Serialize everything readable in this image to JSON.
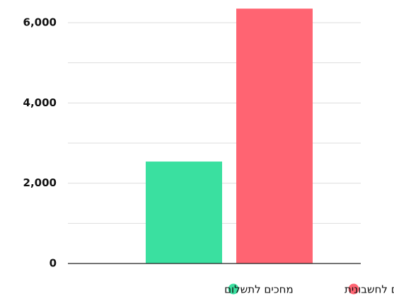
{
  "chart_data": {
    "type": "bar",
    "categories": [
      null
    ],
    "series": [
      {
        "name": "מחכים לתשלום",
        "color": "#3ae0a0",
        "values": [
          2540
        ]
      },
      {
        "name": "מחכים לחשבונית",
        "color": "#ff6472",
        "values": [
          6350
        ]
      }
    ],
    "ylim": [
      0,
      6400
    ],
    "yticks": [
      0,
      {
        "value": 2000,
        "label": "2,000"
      },
      {
        "value": 4000,
        "label": "4,000"
      },
      {
        "value": 6000,
        "label": "6,000"
      }
    ],
    "minor_yticks": [
      1000,
      3000,
      5000
    ],
    "grid": true,
    "legend": "bottom"
  }
}
